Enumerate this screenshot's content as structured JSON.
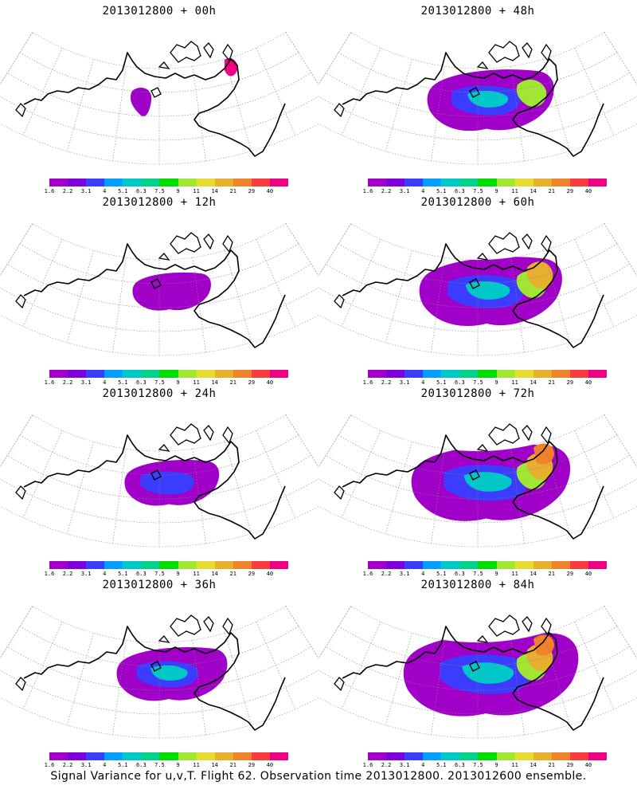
{
  "panels": [
    {
      "title": "2013012800 + 00h",
      "level": 0
    },
    {
      "title": "2013012800 + 48h",
      "level": 4
    },
    {
      "title": "2013012800 + 12h",
      "level": 1
    },
    {
      "title": "2013012800 + 60h",
      "level": 5
    },
    {
      "title": "2013012800 + 24h",
      "level": 2
    },
    {
      "title": "2013012800 + 72h",
      "level": 6
    },
    {
      "title": "2013012800 + 36h",
      "level": 3
    },
    {
      "title": "2013012800 + 84h",
      "level": 7
    }
  ],
  "colorbar": {
    "labels": [
      "1.6",
      "2.2",
      "3.1",
      "4",
      "5.1",
      "6.3",
      "7.5",
      "9",
      "11",
      "14",
      "21",
      "29",
      "40"
    ],
    "colors": [
      "#a000c8",
      "#7d00dc",
      "#3c3cff",
      "#00a0ff",
      "#00c8c8",
      "#00d28c",
      "#00dc00",
      "#a0e632",
      "#e6dc32",
      "#e6af2d",
      "#f08228",
      "#fa3c3c",
      "#f00082"
    ]
  },
  "footer": "Signal Variance for u,v,T. Flight 62. Observation time 2013012800. 2013012600 ensemble."
}
